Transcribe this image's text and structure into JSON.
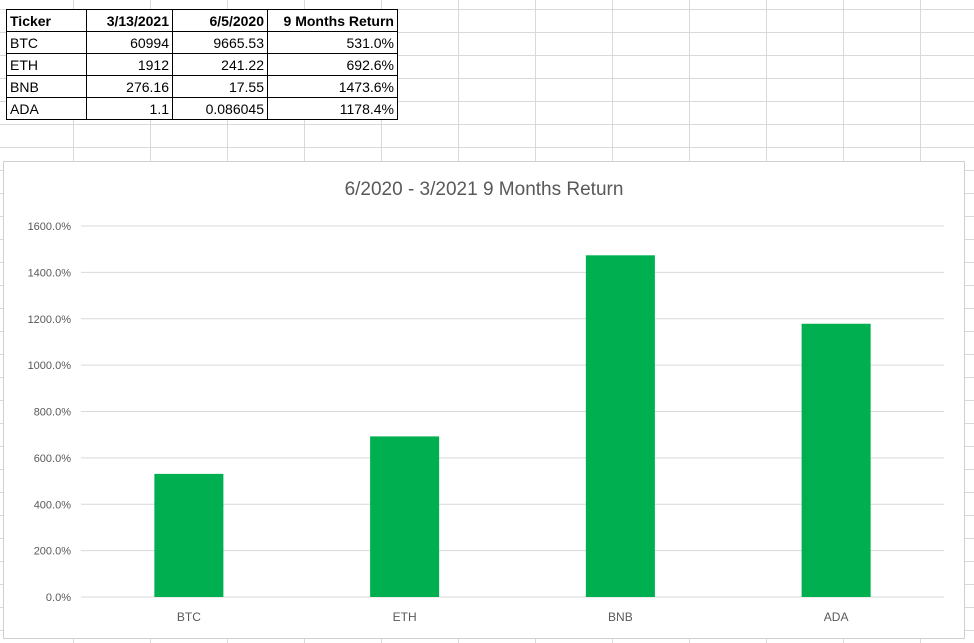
{
  "table": {
    "headers": [
      "Ticker",
      "3/13/2021",
      "6/5/2020",
      "9 Months Return"
    ],
    "rows": [
      [
        "BTC",
        "60994",
        "9665.53",
        "531.0%"
      ],
      [
        "ETH",
        "1912",
        "241.22",
        "692.6%"
      ],
      [
        "BNB",
        "276.16",
        "17.55",
        "1473.6%"
      ],
      [
        "ADA",
        "1.1",
        "0.086045",
        "1178.4%"
      ]
    ]
  },
  "chart_data": {
    "type": "bar",
    "title": "6/2020 - 3/2021 9 Months Return",
    "categories": [
      "BTC",
      "ETH",
      "BNB",
      "ADA"
    ],
    "values": [
      531.0,
      692.6,
      1473.6,
      1178.4
    ],
    "value_unit": "%",
    "ylim": [
      0,
      1600
    ],
    "yticks": [
      0,
      200,
      400,
      600,
      800,
      1000,
      1200,
      1400,
      1600
    ],
    "ytick_labels": [
      "0.0%",
      "200.0%",
      "400.0%",
      "600.0%",
      "800.0%",
      "1000.0%",
      "1200.0%",
      "1400.0%",
      "1600.0%"
    ],
    "grid": true,
    "legend": "none",
    "bar_color": "#00b050",
    "grid_color": "#d9d9d9",
    "label_color": "#595959"
  }
}
